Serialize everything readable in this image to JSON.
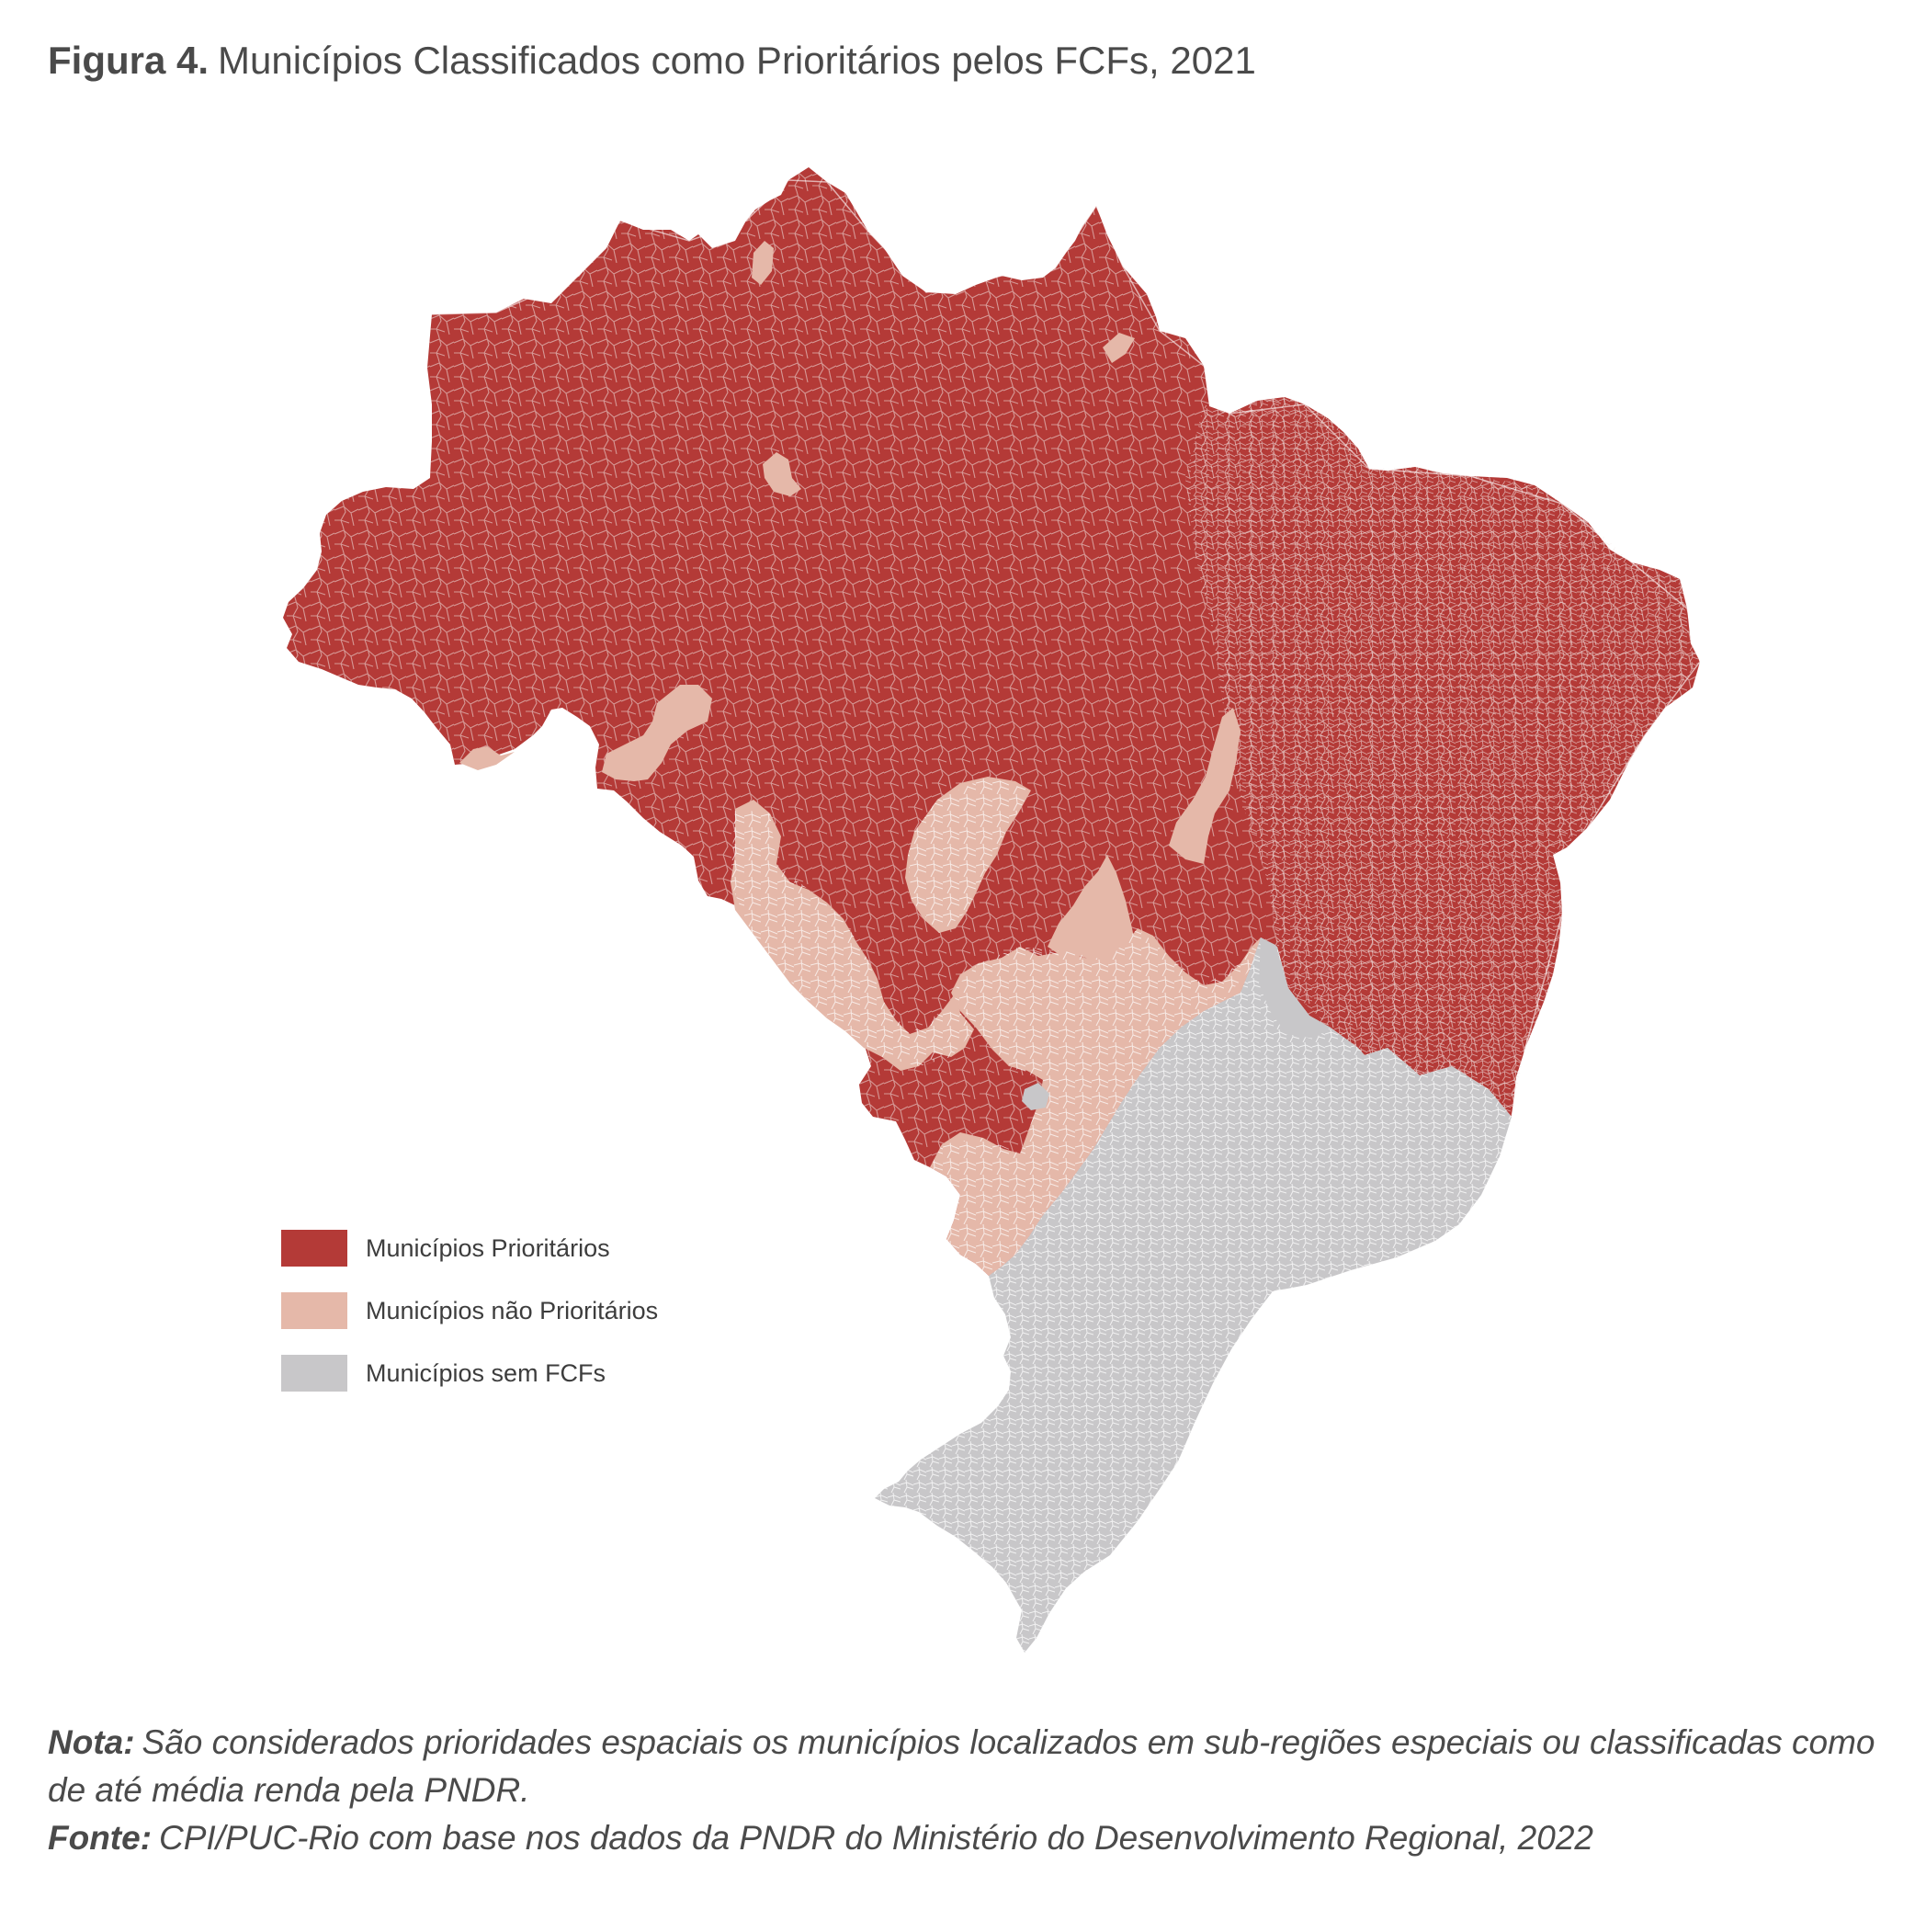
{
  "figure": {
    "label": "Figura 4.",
    "title": "Municípios Classificados como Prioritários pelos FCFs, 2021"
  },
  "colors": {
    "prioritario": "#b43a37",
    "nao_prioritario": "#e5b8a9",
    "sem_fcf": "#c8c7c9",
    "borders": "#f2e6e4"
  },
  "legend": {
    "items": [
      {
        "label": "Municípios Prioritários",
        "color": "#b43a37"
      },
      {
        "label": "Municípios não Prioritários",
        "color": "#e5b8a9"
      },
      {
        "label": "Municípios sem FCFs",
        "color": "#c8c7c9"
      }
    ]
  },
  "notes": {
    "nota_label": "Nota:",
    "nota_text": "São considerados prioridades espaciais os municípios localizados em sub-regiões especiais ou classificadas como de até média renda pela PNDR.",
    "fonte_label": "Fonte:",
    "fonte_text": "CPI/PUC-Rio com base nos dados da PNDR do Ministério do Desenvolvimento Regional, 2022"
  }
}
